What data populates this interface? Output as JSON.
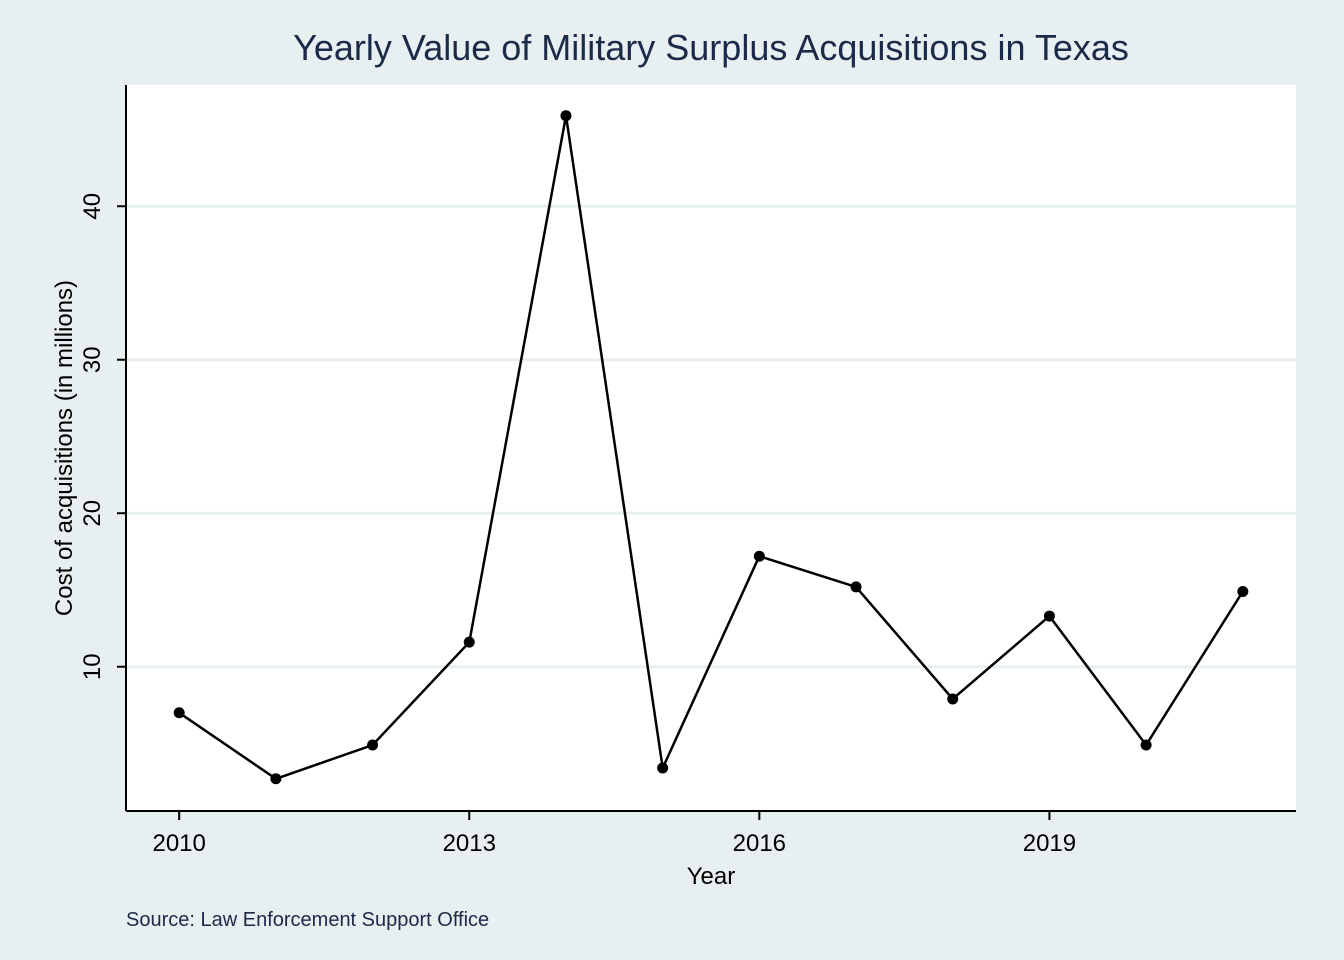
{
  "chart_data": {
    "type": "line",
    "title": "Yearly Value of Military Surplus Acquisitions in Texas",
    "xlabel": "Year",
    "ylabel": "Cost of acquisitions (in millions)",
    "note": "Source: Law Enforcement Support Office",
    "x": [
      2010,
      2011,
      2012,
      2013,
      2014,
      2015,
      2016,
      2017,
      2018,
      2019,
      2020,
      2021
    ],
    "series": [
      {
        "values": [
          7.0,
          2.7,
          4.9,
          11.6,
          45.9,
          3.4,
          17.2,
          15.2,
          7.9,
          13.3,
          4.9,
          14.9
        ]
      }
    ],
    "xticks": [
      2010,
      2013,
      2016,
      2019
    ],
    "xtick_labels": [
      "2010",
      "2013",
      "2016",
      "2019"
    ],
    "yticks": [
      10,
      20,
      30,
      40
    ],
    "ytick_labels": [
      "10",
      "20",
      "30",
      "40"
    ],
    "xlim": [
      2009.45,
      2021.55
    ],
    "ylim": [
      0.6,
      47.9
    ],
    "grid": true,
    "legend": "none",
    "colors": {
      "background": "#e8eff0",
      "plot_background": "#ffffff",
      "gridline": "#e8eff0",
      "line": "#000000",
      "title": "#1c2a4a"
    }
  }
}
